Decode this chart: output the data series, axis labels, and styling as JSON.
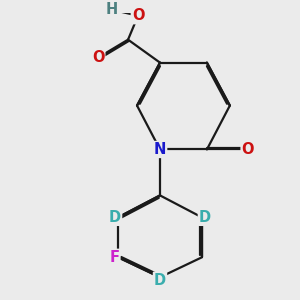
{
  "background_color": "#ebebeb",
  "bond_color": "#1a1a1a",
  "bond_width": 1.6,
  "atom_labels": {
    "N": {
      "color": "#1a1acc",
      "fontsize": 10.5,
      "fontweight": "bold"
    },
    "O": {
      "color": "#cc1111",
      "fontsize": 10.5,
      "fontweight": "bold"
    },
    "H": {
      "color": "#4d8080",
      "fontsize": 10.5,
      "fontweight": "bold"
    },
    "F": {
      "color": "#cc22cc",
      "fontsize": 10.5,
      "fontweight": "bold"
    },
    "D": {
      "color": "#3aadad",
      "fontsize": 10.5,
      "fontweight": "bold"
    }
  },
  "figsize": [
    3.0,
    3.0
  ],
  "dpi": 100
}
